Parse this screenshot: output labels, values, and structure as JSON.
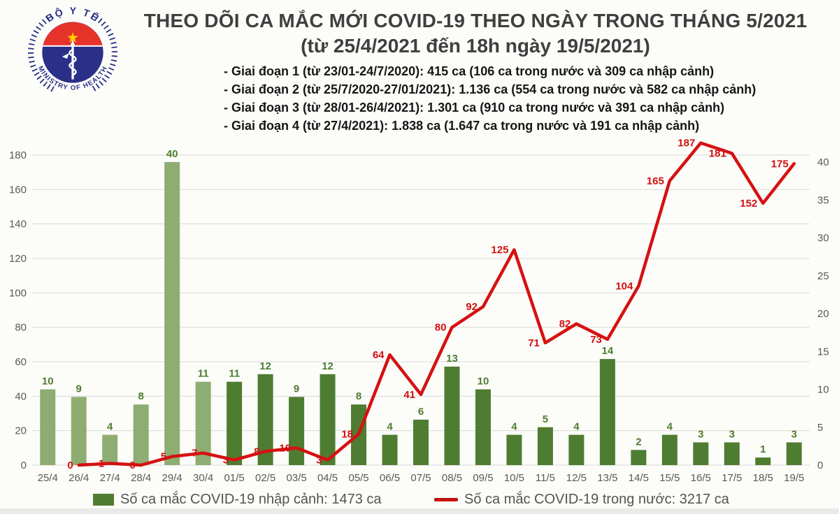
{
  "logo": {
    "top_text": "BỘ Y TẾ",
    "bottom_text": "MINISTRY OF HEALTH"
  },
  "header": {
    "title_line1": "THEO DÕI CA MẮC MỚI COVID-19 THEO NGÀY TRONG THÁNG 5/2021",
    "title_line2": "(từ 25/4/2021 đến 18h ngày 19/5/2021)",
    "phases": [
      "- Giai đoạn 1 (từ 23/01-24/7/2020): 415 ca (106 ca trong nước và 309 ca nhập cảnh)",
      "- Giai đoạn 2 (từ 25/7/2020-27/01/2021): 1.136 ca (554 ca trong nước và 582 ca nhập cảnh)",
      "- Giai đoạn 3 (từ 28/01-26/4/2021): 1.301 ca (910 ca trong nước và 391 ca nhập cảnh)",
      "- Giai đoạn 4 (từ 27/4/2021): 1.838 ca (1.647 ca trong nước và 191 ca nhập cảnh)"
    ]
  },
  "chart_data": {
    "type": "bar+line combo",
    "categories": [
      "25/4",
      "26/4",
      "27/4",
      "28/4",
      "29/4",
      "30/4",
      "01/5",
      "02/5",
      "03/5",
      "04/5",
      "05/5",
      "06/5",
      "07/5",
      "08/5",
      "09/5",
      "10/5",
      "11/5",
      "12/5",
      "13/5",
      "14/5",
      "15/5",
      "16/5",
      "17/5",
      "18/5",
      "19/5"
    ],
    "left_axis": {
      "min": 0,
      "max": 180,
      "step": 20,
      "applies_to": "line"
    },
    "right_axis": {
      "min": 0,
      "max": 40,
      "step": 5,
      "applies_to": "bars"
    },
    "grid": "horizontal, light gray, every 20 left-axis units",
    "legend_position": "bottom",
    "series": [
      {
        "name": "Số ca mắc COVID-19 nhập cảnh",
        "type": "bar",
        "axis": "right",
        "values": [
          10,
          9,
          4,
          8,
          40,
          11,
          11,
          12,
          9,
          12,
          8,
          4,
          6,
          13,
          10,
          4,
          5,
          4,
          14,
          2,
          4,
          3,
          3,
          1,
          3
        ],
        "light_green_bars_first_n": 6,
        "total_label": "1473 ca"
      },
      {
        "name": "Số ca mắc COVID-19 trong nước",
        "type": "line",
        "axis": "left",
        "start_category": "26/4",
        "start_index": 1,
        "values": [
          0,
          1,
          0,
          5,
          7,
          3,
          8,
          10,
          3,
          18,
          64,
          41,
          80,
          92,
          125,
          71,
          82,
          73,
          104,
          165,
          187,
          181,
          152,
          175
        ],
        "total_label": "3217 ca"
      }
    ]
  },
  "legend": {
    "items": [
      {
        "swatch": "bar",
        "label": "Số ca mắc COVID-19 nhập cảnh: 1473 ca"
      },
      {
        "swatch": "line",
        "label": "Số ca mắc COVID-19 trong nước: 3217 ca"
      }
    ]
  },
  "colors": {
    "bar_dark": "#4e7c31",
    "bar_light": "#8ead72",
    "bar_label": "#4e7c31",
    "line": "#d51111",
    "line_label": "#d11111",
    "grid": "#d9d9d9",
    "axis_text": "#595959",
    "title_text": "#3f3f3f",
    "logo_blue": "#2a3087",
    "logo_red": "#e63329",
    "star_yellow": "#ffcf00"
  }
}
